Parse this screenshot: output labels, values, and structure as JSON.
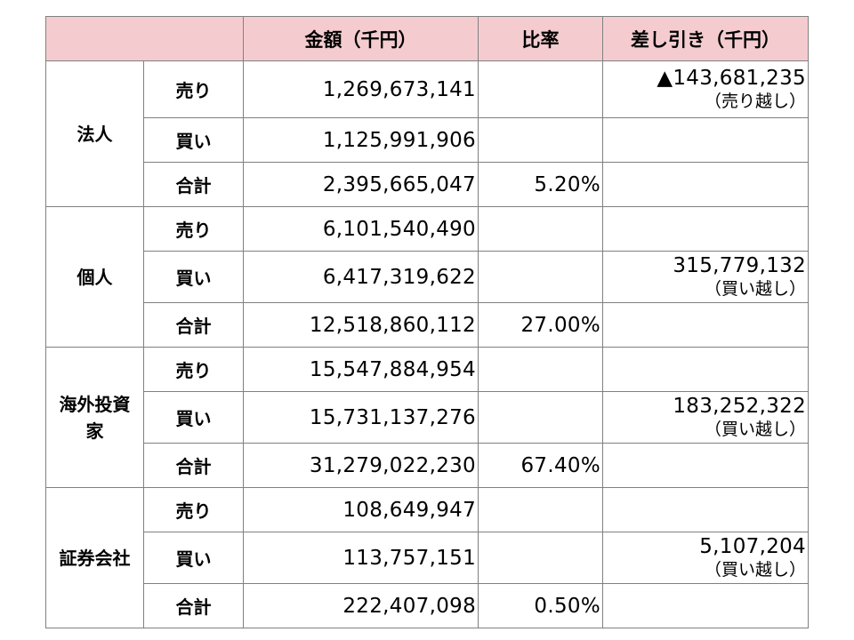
{
  "headers": [
    "",
    "金額（千円）",
    "比率",
    "差し引き（千円）"
  ],
  "groups": [
    {
      "name": "法人",
      "rows": [
        {
          "type": "売り",
          "amount": "1,269,673,141",
          "ratio": "",
          "diff": "▲143,681,235",
          "note": "（売り越し）"
        },
        {
          "type": "買い",
          "amount": "1,125,991,906",
          "ratio": "",
          "diff": "",
          "note": ""
        },
        {
          "type": "合計",
          "amount": "2,395,665,047",
          "ratio": "5.20%",
          "diff": "",
          "note": ""
        }
      ]
    },
    {
      "name": "個人",
      "rows": [
        {
          "type": "売り",
          "amount": "6,101,540,490",
          "ratio": "",
          "diff": "",
          "note": ""
        },
        {
          "type": "買い",
          "amount": "6,417,319,622",
          "ratio": "",
          "diff": "315,779,132",
          "note": "（買い越し）"
        },
        {
          "type": "合計",
          "amount": "12,518,860,112",
          "ratio": "27.00%",
          "diff": "",
          "note": ""
        }
      ]
    },
    {
      "name": "海外投資家",
      "rows": [
        {
          "type": "売り",
          "amount": "15,547,884,954",
          "ratio": "",
          "diff": "",
          "note": ""
        },
        {
          "type": "買い",
          "amount": "15,731,137,276",
          "ratio": "",
          "diff": "183,252,322",
          "note": "（買い越し）"
        },
        {
          "type": "合計",
          "amount": "31,279,022,230",
          "ratio": "67.40%",
          "diff": "",
          "note": ""
        }
      ]
    },
    {
      "name": "証券会社",
      "rows": [
        {
          "type": "売り",
          "amount": "108,649,947",
          "ratio": "",
          "diff": "",
          "note": ""
        },
        {
          "type": "買い",
          "amount": "113,757,151",
          "ratio": "",
          "diff": "5,107,204",
          "note": "（買い越し）"
        },
        {
          "type": "合計",
          "amount": "222,407,098",
          "ratio": "0.50%",
          "diff": "",
          "note": ""
        }
      ]
    }
  ]
}
